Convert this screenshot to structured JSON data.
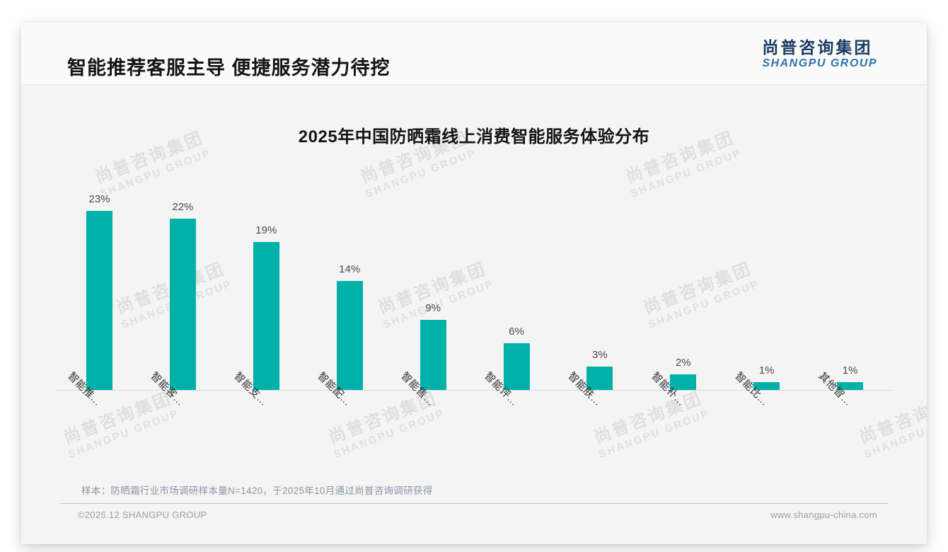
{
  "header": {
    "title": "智能推荐客服主导 便捷服务潜力待挖"
  },
  "logo": {
    "cn": "尚普咨询集团",
    "en": "SHANGPU GROUP"
  },
  "watermark": {
    "cn": "尚普咨询集团",
    "en": "SHANGPU GROUP"
  },
  "chart_data": {
    "type": "bar",
    "title": "2025年中国防晒霜线上消费智能服务体验分布",
    "categories": [
      "智能推…",
      "智能客…",
      "智能支…",
      "智能配…",
      "智能售…",
      "智能评…",
      "智能肤…",
      "智能补…",
      "智能比…",
      "其他智…"
    ],
    "values": [
      23,
      22,
      19,
      14,
      9,
      6,
      3,
      2,
      1,
      1
    ],
    "value_labels": [
      "23%",
      "22%",
      "19%",
      "14%",
      "9%",
      "6%",
      "3%",
      "2%",
      "1%",
      "1%"
    ],
    "unit": "%",
    "xlabel": "",
    "ylabel": "",
    "ylim": [
      0,
      25
    ],
    "grid": false,
    "legend": null,
    "bar_color": "#00b1aa",
    "x_label_rotation_deg": 45
  },
  "note": "样本：防晒霜行业市场调研样本量N=1420，于2025年10月通过尚普咨询调研获得",
  "footer": {
    "left": "©2025.12 SHANGPU GROUP",
    "right": "www.shangpu-china.com"
  },
  "colors": {
    "bar": "#00b1aa",
    "logo_cn": "#1d3b63",
    "logo_en": "#2e71b0",
    "note_text": "#8b96a4",
    "footer_divider": "#b9c6d0",
    "axis_line": "#dcdcdc"
  }
}
